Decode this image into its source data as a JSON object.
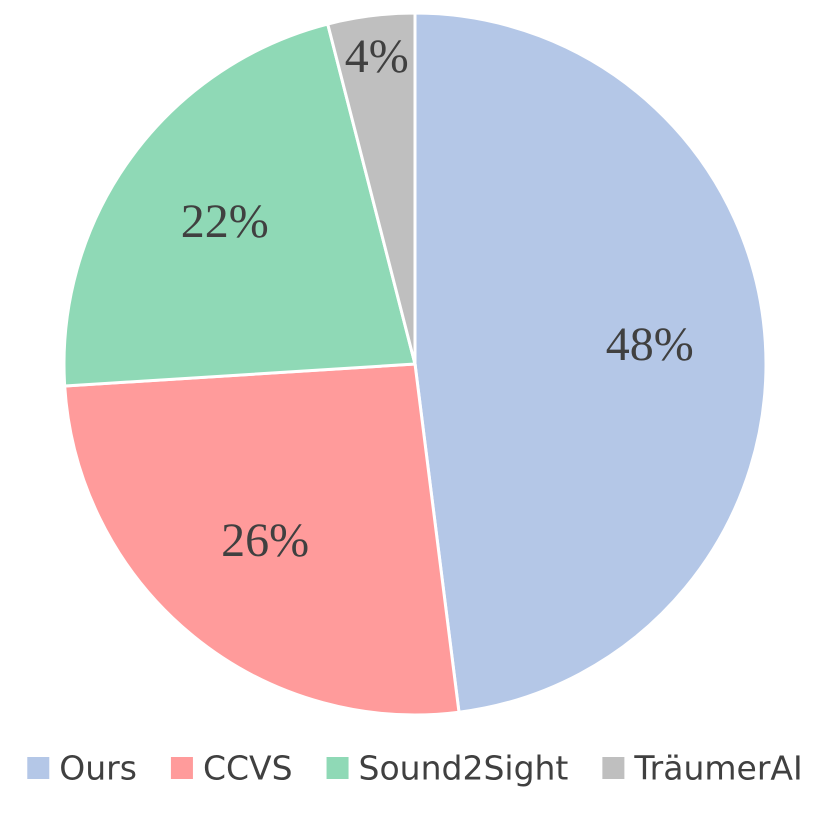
{
  "chart_data": {
    "type": "pie",
    "categories": [
      "Ours",
      "CCVS",
      "Sound2Sight",
      "TräumerAI"
    ],
    "values": [
      48,
      26,
      22,
      4
    ],
    "value_labels": [
      "48%",
      "26%",
      "22%",
      "4%"
    ],
    "colors": [
      "#b4c7e7",
      "#ff9b9b",
      "#8fd9b6",
      "#bfbfbf"
    ],
    "legend": "bottom"
  }
}
